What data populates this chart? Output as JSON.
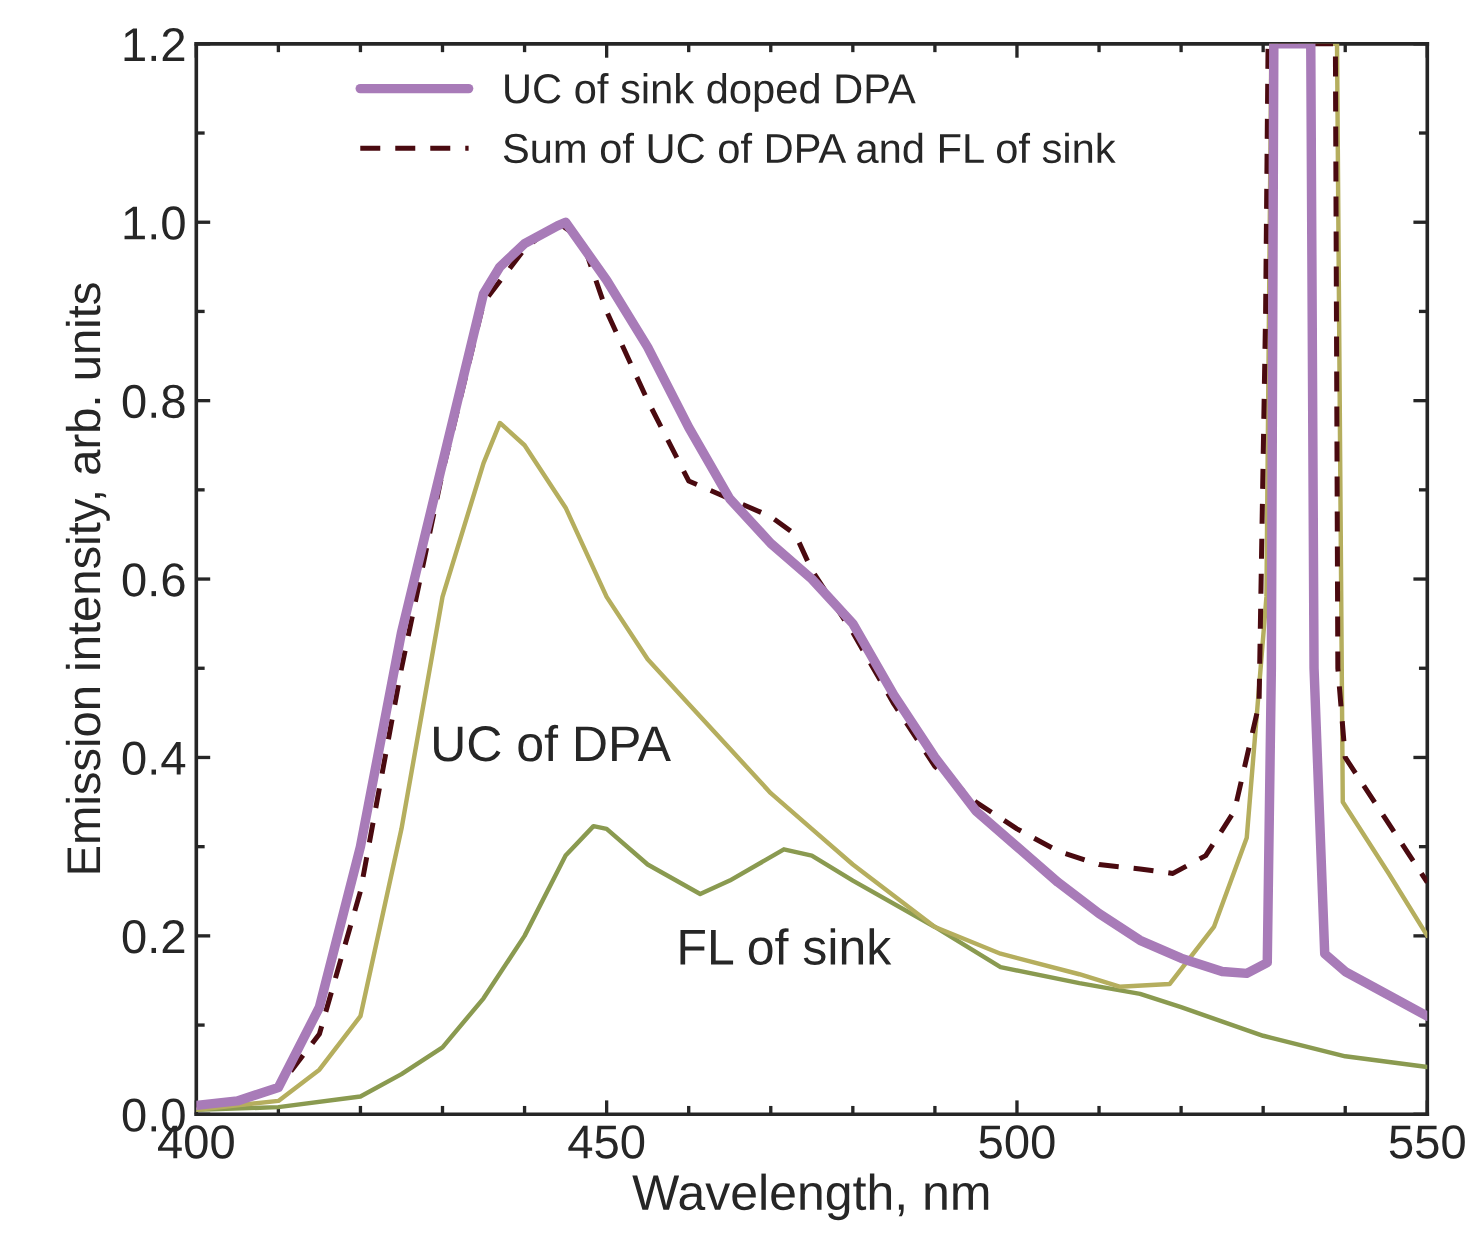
{
  "chart_data": {
    "type": "line",
    "xlabel": "Wavelength, nm",
    "ylabel": "Emission intensity, arb. units",
    "xlim": [
      400,
      550
    ],
    "ylim": [
      0,
      1.2
    ],
    "xticks": [
      400,
      {
        "value": 410,
        "label": null
      },
      {
        "value": 420,
        "label": null
      },
      {
        "value": 430,
        "label": null
      },
      {
        "value": 440,
        "label": null
      },
      450,
      {
        "value": 460,
        "label": null
      },
      {
        "value": 470,
        "label": null
      },
      {
        "value": 480,
        "label": null
      },
      {
        "value": 490,
        "label": null
      },
      500,
      {
        "value": 510,
        "label": null
      },
      {
        "value": 520,
        "label": null
      },
      {
        "value": 530,
        "label": null
      },
      {
        "value": 540,
        "label": null
      },
      550
    ],
    "yticks": [
      {
        "value": 0,
        "label": "0.0"
      },
      {
        "value": 0.1,
        "label": null
      },
      {
        "value": 0.2,
        "label": "0.2"
      },
      {
        "value": 0.3,
        "label": null
      },
      {
        "value": 0.4,
        "label": "0.4"
      },
      {
        "value": 0.5,
        "label": null
      },
      {
        "value": 0.6,
        "label": "0.6"
      },
      {
        "value": 0.7,
        "label": null
      },
      {
        "value": 0.8,
        "label": "0.8"
      },
      {
        "value": 0.9,
        "label": null
      },
      {
        "value": 1.0,
        "label": "1.0"
      },
      {
        "value": 1.1,
        "label": null
      },
      {
        "value": 1.2,
        "label": "1.2"
      }
    ],
    "grid": false,
    "legend": "top",
    "series": [
      {
        "name": "UC of sink doped DPA",
        "color": "#a87bb8",
        "line_style": "solid",
        "x": [
          400,
          405,
          410,
          415,
          420,
          425,
          430,
          435,
          437,
          440,
          444,
          445,
          450,
          455,
          460,
          465,
          470,
          475,
          480,
          485,
          490,
          495,
          500,
          505,
          510,
          515,
          520,
          525,
          528,
          530.5,
          531,
          531.3,
          535.8,
          536.2,
          537.5,
          540,
          545,
          550
        ],
        "values": [
          0.01,
          0.015,
          0.03,
          0.12,
          0.3,
          0.54,
          0.73,
          0.92,
          0.95,
          0.976,
          0.996,
          1.0,
          0.935,
          0.86,
          0.77,
          0.69,
          0.64,
          0.6,
          0.55,
          0.47,
          0.4,
          0.34,
          0.3,
          0.26,
          0.225,
          0.195,
          0.175,
          0.16,
          0.158,
          0.17,
          0.5,
          1.2,
          1.2,
          0.5,
          0.18,
          0.16,
          0.135,
          0.11
        ]
      },
      {
        "name": "Sum of UC of DPA and FL of sink",
        "color": "#4a0a10",
        "line_style": "dashed",
        "x": [
          400,
          405,
          410,
          415,
          420,
          425,
          430,
          435,
          440,
          444,
          447,
          450,
          455,
          460,
          465,
          470,
          473,
          475,
          480,
          485,
          490,
          495,
          500,
          505,
          510,
          515,
          519,
          523,
          526.5,
          529.5,
          530.3,
          530.6,
          538.8,
          539.1,
          540,
          545,
          550
        ],
        "values": [
          0.01,
          0.015,
          0.03,
          0.09,
          0.25,
          0.5,
          0.72,
          0.91,
          0.97,
          1.0,
          0.98,
          0.9,
          0.8,
          0.71,
          0.69,
          0.67,
          0.65,
          0.61,
          0.54,
          0.46,
          0.39,
          0.35,
          0.32,
          0.295,
          0.28,
          0.275,
          0.27,
          0.29,
          0.34,
          0.46,
          0.9,
          1.2,
          1.2,
          0.5,
          0.4,
          0.33,
          0.26
        ]
      },
      {
        "color": "#b5ae5e",
        "line_style": "solid",
        "x": [
          400,
          410,
          415,
          420,
          425,
          430,
          435,
          437,
          440,
          445,
          450,
          455,
          460,
          465,
          470,
          475,
          480,
          490,
          498,
          507.6,
          512.5,
          518.6,
          524,
          528,
          530.4,
          531,
          539,
          539.7,
          545.3,
          550
        ],
        "values": [
          0.005,
          0.015,
          0.05,
          0.11,
          0.32,
          0.58,
          0.73,
          0.775,
          0.75,
          0.68,
          0.58,
          0.51,
          0.46,
          0.41,
          0.36,
          0.32,
          0.28,
          0.21,
          0.18,
          0.157,
          0.143,
          0.146,
          0.21,
          0.31,
          0.58,
          1.2,
          1.2,
          0.35,
          0.27,
          0.2
        ]
      },
      {
        "color": "#8a9a50",
        "line_style": "solid",
        "x": [
          400,
          410,
          420,
          425,
          430,
          435,
          440,
          445,
          448.4,
          450,
          455,
          461.4,
          465,
          471.6,
          475,
          480,
          490,
          498,
          507.6,
          515,
          520,
          530,
          540,
          550
        ],
        "values": [
          0.005,
          0.008,
          0.02,
          0.045,
          0.075,
          0.13,
          0.2,
          0.29,
          0.323,
          0.32,
          0.28,
          0.247,
          0.262,
          0.297,
          0.29,
          0.262,
          0.21,
          0.165,
          0.147,
          0.135,
          0.12,
          0.088,
          0.065,
          0.053
        ]
      }
    ],
    "annotations": [
      "UC of DPA",
      "FL of sink"
    ]
  }
}
